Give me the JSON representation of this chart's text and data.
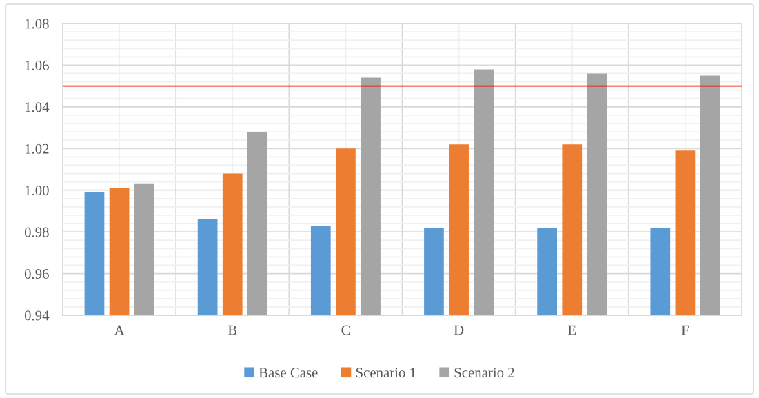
{
  "chart_data": {
    "type": "bar",
    "categories": [
      "A",
      "B",
      "C",
      "D",
      "E",
      "F"
    ],
    "series": [
      {
        "name": "Base Case",
        "color": "#5b9bd5",
        "values": [
          0.999,
          0.986,
          0.983,
          0.982,
          0.982,
          0.982
        ]
      },
      {
        "name": "Scenario 1",
        "color": "#ed7d31",
        "values": [
          1.001,
          1.008,
          1.02,
          1.022,
          1.022,
          1.019
        ]
      },
      {
        "name": "Scenario 2",
        "color": "#a5a5a5",
        "values": [
          1.003,
          1.028,
          1.054,
          1.058,
          1.056,
          1.055
        ]
      }
    ],
    "ylim": [
      0.94,
      1.08
    ],
    "yticks": [
      0.94,
      {
        "value": 0.944,
        "label": null
      },
      {
        "value": 0.948,
        "label": null
      },
      {
        "value": 0.952,
        "label": null
      },
      {
        "value": 0.956,
        "label": null
      },
      0.96,
      {
        "value": 0.964,
        "label": null
      },
      {
        "value": 0.968,
        "label": null
      },
      {
        "value": 0.972,
        "label": null
      },
      {
        "value": 0.976,
        "label": null
      },
      0.98,
      {
        "value": 0.984,
        "label": null
      },
      {
        "value": 0.988,
        "label": null
      },
      {
        "value": 0.992,
        "label": null
      },
      {
        "value": 0.996,
        "label": null
      },
      {
        "value": 1.0,
        "label": "1.00"
      },
      {
        "value": 1.004,
        "label": null
      },
      {
        "value": 1.008,
        "label": null
      },
      {
        "value": 1.012,
        "label": null
      },
      {
        "value": 1.016,
        "label": null
      },
      1.02,
      {
        "value": 1.024,
        "label": null
      },
      {
        "value": 1.028,
        "label": null
      },
      {
        "value": 1.032,
        "label": null
      },
      {
        "value": 1.036,
        "label": null
      },
      1.04,
      {
        "value": 1.044,
        "label": null
      },
      {
        "value": 1.048,
        "label": null
      },
      {
        "value": 1.052,
        "label": null
      },
      {
        "value": 1.056,
        "label": null
      },
      1.06,
      {
        "value": 1.064,
        "label": null
      },
      {
        "value": 1.068,
        "label": null
      },
      {
        "value": 1.072,
        "label": null
      },
      {
        "value": 1.076,
        "label": null
      },
      1.08
    ],
    "grid": true,
    "legend": "bottom",
    "ref_lines": [
      {
        "axis": "y",
        "value": 1.05,
        "color": "#ff0000"
      }
    ]
  }
}
